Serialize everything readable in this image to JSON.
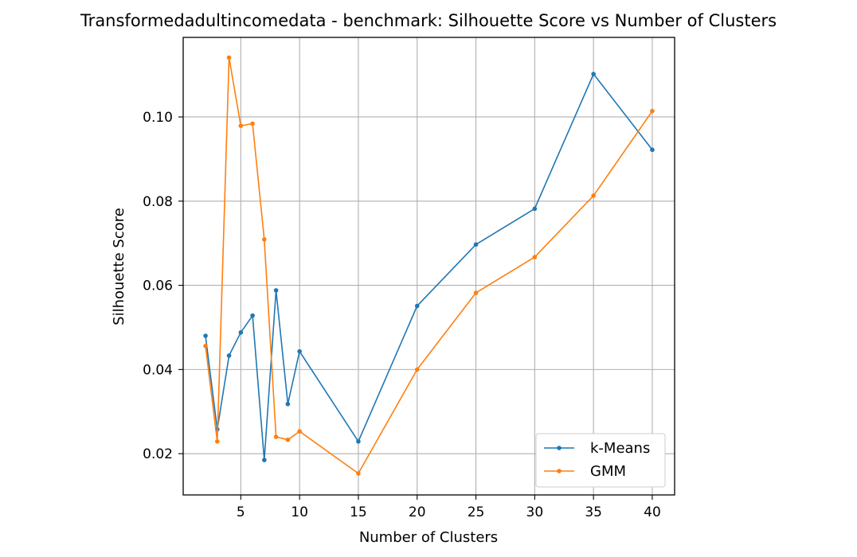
{
  "chart_data": {
    "type": "line",
    "title": "Transformedadultincomedata - benchmark: Silhouette Score vs Number of Clusters",
    "xlabel": "Number of Clusters",
    "ylabel": "Silhouette Score",
    "xlim": [
      0.1,
      41.9
    ],
    "ylim": [
      0.0102,
      0.1189
    ],
    "xticks": [
      5,
      10,
      15,
      20,
      25,
      30,
      35,
      40
    ],
    "xtick_labels": [
      "5",
      "10",
      "15",
      "20",
      "25",
      "30",
      "35",
      "40"
    ],
    "yticks": [
      0.02,
      0.04,
      0.06,
      0.08,
      0.1
    ],
    "ytick_labels": [
      "0.02",
      "0.04",
      "0.06",
      "0.08",
      "0.10"
    ],
    "grid": true,
    "legend_position": "lower-right",
    "series": [
      {
        "name": "k-Means",
        "color": "#1f77b4",
        "x": [
          2,
          3,
          4,
          5,
          6,
          7,
          8,
          9,
          10,
          15,
          20,
          25,
          30,
          35,
          40
        ],
        "y": [
          0.048,
          0.0258,
          0.0433,
          0.0488,
          0.0528,
          0.0185,
          0.0588,
          0.0318,
          0.0443,
          0.0229,
          0.0551,
          0.0697,
          0.0782,
          0.1102,
          0.0922
        ]
      },
      {
        "name": "GMM",
        "color": "#ff7f0e",
        "x": [
          2,
          3,
          4,
          5,
          6,
          7,
          8,
          9,
          10,
          15,
          20,
          25,
          30,
          35,
          40
        ],
        "y": [
          0.0456,
          0.0229,
          0.1141,
          0.0979,
          0.0984,
          0.0709,
          0.024,
          0.0233,
          0.0253,
          0.0153,
          0.04,
          0.0582,
          0.0667,
          0.0813,
          0.1014
        ]
      }
    ]
  }
}
